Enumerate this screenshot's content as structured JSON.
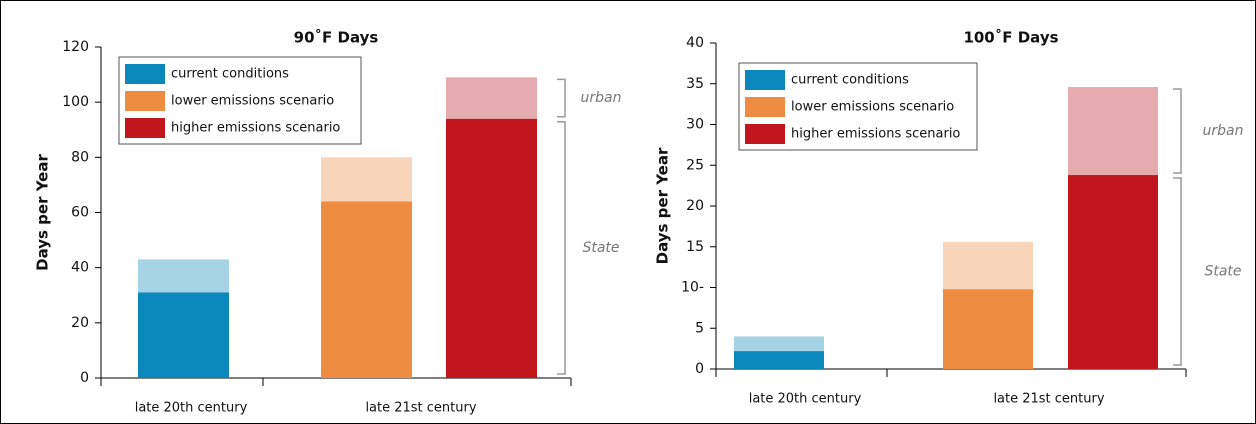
{
  "chart_data": [
    {
      "type": "bar",
      "title": "90˚F Days",
      "y_label": "Days per Year",
      "categories": [
        "late 20th century",
        "late 21st century"
      ],
      "series": [
        {
          "name": "current conditions",
          "color": "#0a87bb",
          "urban_color": "#a6d3e6",
          "values": [
            31,
            null
          ],
          "urban": [
            12,
            null
          ]
        },
        {
          "name": "lower emissions scenario",
          "color": "#ee8c42",
          "urban_color": "#f8d4b8",
          "values": [
            null,
            64
          ],
          "urban": [
            null,
            16
          ]
        },
        {
          "name": "higher emissions scenario",
          "color": "#c2161f",
          "urban_color": "#e6abae",
          "values": [
            null,
            94
          ],
          "urban": [
            null,
            15
          ]
        }
      ],
      "annotations": [
        "urban",
        "State"
      ],
      "ylim": [
        0,
        120
      ],
      "yticks": [
        0,
        20,
        40,
        60,
        80,
        100,
        120
      ]
    },
    {
      "type": "bar",
      "title": "100˚F Days",
      "y_label": "Days per Year",
      "categories": [
        "late 20th century",
        "late 21st century"
      ],
      "series": [
        {
          "name": "current conditions",
          "color": "#0a87bb",
          "urban_color": "#a6d3e6",
          "values": [
            2.2,
            null
          ],
          "urban": [
            1.8,
            null
          ]
        },
        {
          "name": "lower emissions scenario",
          "color": "#ee8c42",
          "urban_color": "#f8d4b8",
          "values": [
            null,
            9.8
          ],
          "urban": [
            null,
            5.8
          ]
        },
        {
          "name": "higher emissions scenario",
          "color": "#c2161f",
          "urban_color": "#e6abae",
          "values": [
            null,
            23.8
          ],
          "urban": [
            null,
            10.8
          ]
        }
      ],
      "annotations": [
        "urban",
        "State"
      ],
      "ylim": [
        0,
        40
      ],
      "yticks": [
        0,
        5,
        {
          "value": 10,
          "label": "10-"
        },
        15,
        20,
        25,
        30,
        35,
        40
      ]
    }
  ]
}
